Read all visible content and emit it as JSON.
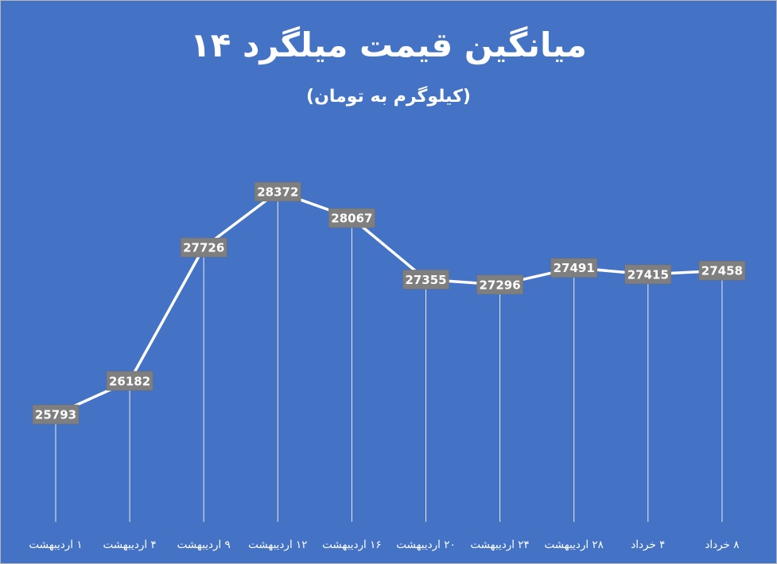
{
  "chart_data": {
    "type": "line",
    "title": "میانگین قیمت میلگرد ۱۴",
    "subtitle": "(کیلوگرم به تومان)",
    "categories": [
      "۱ اردیبهشت",
      "۴ اردیبهشت",
      "۹ اردیبهشت",
      "۱۲ اردیبهشت",
      "۱۶ اردیبهشت",
      "۲۰ اردیبهشت",
      "۲۴ اردیبهشت",
      "۲۸ اردیبهشت",
      "۴ خرداد",
      "۸ خرداد"
    ],
    "values": [
      25793,
      26182,
      27726,
      28372,
      28067,
      27355,
      27296,
      27491,
      27415,
      27458
    ],
    "colors": {
      "background": "#4472c4",
      "line": "#ffffff",
      "label_box": "#7f7f7f",
      "label_text": "#ffffff"
    },
    "grid": false,
    "legend": "none"
  }
}
